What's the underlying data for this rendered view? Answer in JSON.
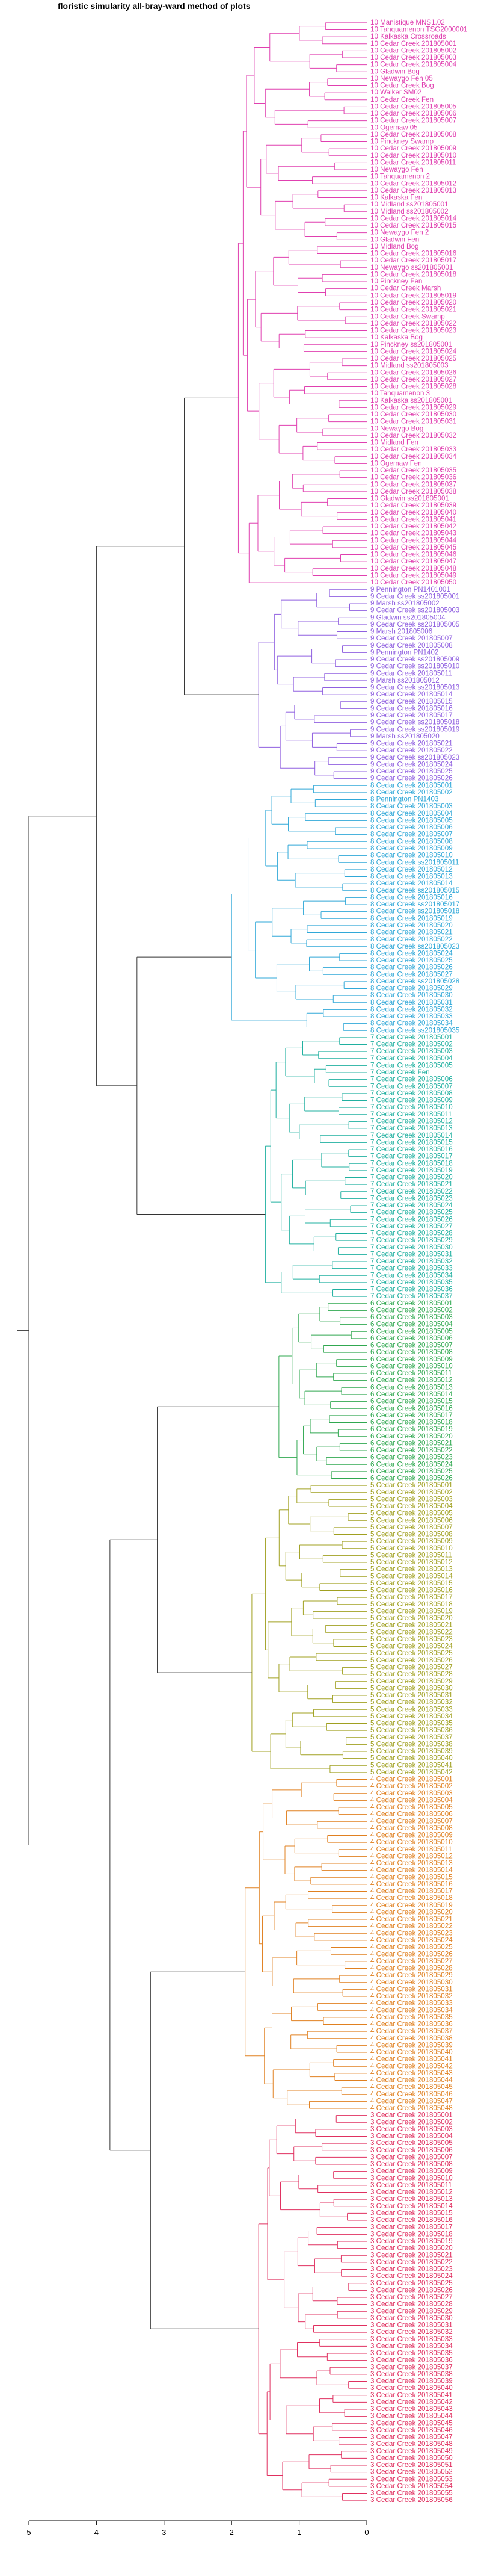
{
  "title": "floristic simularity all-bray-ward  method of plots",
  "axis": {
    "ticks": [
      5,
      4,
      3,
      2,
      1,
      0
    ],
    "range": [
      5,
      0
    ]
  },
  "clusters": [
    {
      "name": "cluster-1",
      "color": "#e040b0",
      "labels": [
        "10 Manistique MNS1.02",
        "10 Tahquamenon TSG2000001",
        "10 Kalkaska Crossroads",
        "10 Cedar Creek 201805001",
        "10 Cedar Creek 201805002",
        "10 Cedar Creek 201805003",
        "10 Cedar Creek 201805004",
        "10 Gladwin Bog",
        "10 Newaygo Fen 05",
        "10 Cedar Creek Bog",
        "10 Walker SM02",
        "10 Cedar Creek Fen",
        "10 Cedar Creek 201805005",
        "10 Cedar Creek 201805006",
        "10 Cedar Creek 201805007",
        "10 Ogemaw 05",
        "10 Cedar Creek 201805008",
        "10 Pinckney Swamp",
        "10 Cedar Creek 201805009",
        "10 Cedar Creek 201805010",
        "10 Cedar Creek 201805011",
        "10 Newaygo Fen",
        "10 Tahquamenon 2",
        "10 Cedar Creek 201805012",
        "10 Cedar Creek 201805013",
        "10 Kalkaska Fen",
        "10 Midland ss201805001",
        "10 Midland ss201805002",
        "10 Cedar Creek 201805014",
        "10 Cedar Creek 201805015",
        "10 Newaygo Fen 2",
        "10 Gladwin Fen",
        "10 Midland Bog",
        "10 Cedar Creek 201805016",
        "10 Cedar Creek 201805017",
        "10 Newaygo ss201805001",
        "10 Cedar Creek 201805018",
        "10 Pinckney Fen",
        "10 Cedar Creek Marsh",
        "10 Cedar Creek 201805019",
        "10 Cedar Creek 201805020",
        "10 Cedar Creek 201805021",
        "10 Cedar Creek Swamp",
        "10 Cedar Creek 201805022",
        "10 Cedar Creek 201805023",
        "10 Kalkaska Bog",
        "10 Pinckney ss201805001",
        "10 Cedar Creek 201805024",
        "10 Cedar Creek 201805025",
        "10 Midland ss201805003",
        "10 Cedar Creek 201805026",
        "10 Cedar Creek 201805027",
        "10 Cedar Creek 201805028",
        "10 Tahquamenon 3",
        "10 Kalkaska ss201805001",
        "10 Cedar Creek 201805029",
        "10 Cedar Creek 201805030",
        "10 Cedar Creek 201805031",
        "10 Newaygo Bog",
        "10 Cedar Creek 201805032",
        "10 Midland Fen",
        "10 Cedar Creek 201805033",
        "10 Cedar Creek 201805034",
        "10 Ogemaw Fen",
        "10 Cedar Creek 201805035",
        "10 Cedar Creek 201805036",
        "10 Cedar Creek 201805037",
        "10 Cedar Creek 201805038",
        "10 Gladwin ss201805001",
        "10 Cedar Creek 201805039",
        "10 Cedar Creek 201805040",
        "10 Cedar Creek 201805041",
        "10 Cedar Creek 201805042",
        "10 Cedar Creek 201805043",
        "10 Cedar Creek 201805044",
        "10 Cedar Creek 201805045",
        "10 Cedar Creek 201805046",
        "10 Cedar Creek 201805047",
        "10 Cedar Creek 201805048",
        "10 Cedar Creek 201805049",
        "10 Cedar Creek 201805050"
      ]
    },
    {
      "name": "cluster-2",
      "color": "#9060e0",
      "labels": [
        "9 Pennington PN1401001",
        "9 Cedar Creek ss201805001",
        "9 Marsh ss201805002",
        "9 Cedar Creek ss201805003",
        "9 Gladwin ss201805004",
        "9 Cedar Creek ss201805005",
        "9 Marsh 201805006",
        "9 Cedar Creek 201805007",
        "9 Cedar Creek 201805008",
        "9 Pennington PN1402",
        "9 Cedar Creek ss201805009",
        "9 Cedar Creek ss201805010",
        "9 Cedar Creek 201805011",
        "9 Marsh ss201805012",
        "9 Cedar Creek ss201805013",
        "9 Cedar Creek 201805014",
        "9 Cedar Creek 201805015",
        "9 Cedar Creek 201805016",
        "9 Cedar Creek 201805017",
        "9 Cedar Creek ss201805018",
        "9 Cedar Creek ss201805019",
        "9 Marsh ss201805020",
        "9 Cedar Creek 201805021",
        "9 Cedar Creek 201805022",
        "9 Cedar Creek ss201805023",
        "9 Cedar Creek 201805024",
        "9 Cedar Creek 201805025",
        "9 Cedar Creek 201805026"
      ]
    },
    {
      "name": "cluster-3",
      "color": "#30a8d8",
      "labels": [
        "8 Cedar Creek 201805001",
        "8 Cedar Creek 201805002",
        "8 Pennington PN1403",
        "8 Cedar Creek 201805003",
        "8 Cedar Creek 201805004",
        "8 Cedar Creek 201805005",
        "8 Cedar Creek 201805006",
        "8 Cedar Creek 201805007",
        "8 Cedar Creek 201805008",
        "8 Cedar Creek 201805009",
        "8 Cedar Creek 201805010",
        "8 Cedar Creek ss201805011",
        "8 Cedar Creek 201805012",
        "8 Cedar Creek 201805013",
        "8 Cedar Creek 201805014",
        "8 Cedar Creek ss201805015",
        "8 Cedar Creek 201805016",
        "8 Cedar Creek ss201805017",
        "8 Cedar Creek ss201805018",
        "8 Cedar Creek 201805019",
        "8 Cedar Creek 201805020",
        "8 Cedar Creek 201805021",
        "8 Cedar Creek 201805022",
        "8 Cedar Creek ss201805023",
        "8 Cedar Creek 201805024",
        "8 Cedar Creek 201805025",
        "8 Cedar Creek 201805026",
        "8 Cedar Creek 201805027",
        "8 Cedar Creek ss201805028",
        "8 Cedar Creek 201805029",
        "8 Cedar Creek 201805030",
        "8 Cedar Creek 201805031",
        "8 Cedar Creek 201805032",
        "8 Cedar Creek 201805033",
        "8 Cedar Creek 201805034",
        "8 Cedar Creek ss201805035"
      ]
    },
    {
      "name": "cluster-4",
      "color": "#20b0a0",
      "labels": [
        "7 Cedar Creek 201805001",
        "7 Cedar Creek 201805002",
        "7 Cedar Creek 201805003",
        "7 Cedar Creek 201805004",
        "7 Cedar Creek 201805005",
        "7 Cedar Creek Fen",
        "7 Cedar Creek 201805006",
        "7 Cedar Creek 201805007",
        "7 Cedar Creek 201805008",
        "7 Cedar Creek 201805009",
        "7 Cedar Creek 201805010",
        "7 Cedar Creek 201805011",
        "7 Cedar Creek 201805012",
        "7 Cedar Creek 201805013",
        "7 Cedar Creek 201805014",
        "7 Cedar Creek 201805015",
        "7 Cedar Creek 201805016",
        "7 Cedar Creek 201805017",
        "7 Cedar Creek 201805018",
        "7 Cedar Creek 201805019",
        "7 Cedar Creek 201805020",
        "7 Cedar Creek 201805021",
        "7 Cedar Creek 201805022",
        "7 Cedar Creek 201805023",
        "7 Cedar Creek 201805024",
        "7 Cedar Creek 201805025",
        "7 Cedar Creek 201805026",
        "7 Cedar Creek 201805027",
        "7 Cedar Creek 201805028",
        "7 Cedar Creek 201805029",
        "7 Cedar Creek 201805030",
        "7 Cedar Creek 201805031",
        "7 Cedar Creek 201805032",
        "7 Cedar Creek 201805033",
        "7 Cedar Creek 201805034",
        "7 Cedar Creek 201805035",
        "7 Cedar Creek 201805036",
        "7 Cedar Creek 201805037"
      ]
    },
    {
      "name": "cluster-5",
      "color": "#30a850",
      "labels": [
        "6 Cedar Creek 201805001",
        "6 Cedar Creek 201805002",
        "6 Cedar Creek 201805003",
        "6 Cedar Creek 201805004",
        "6 Cedar Creek 201805005",
        "6 Cedar Creek 201805006",
        "6 Cedar Creek 201805007",
        "6 Cedar Creek 201805008",
        "6 Cedar Creek 201805009",
        "6 Cedar Creek 201805010",
        "6 Cedar Creek 201805011",
        "6 Cedar Creek 201805012",
        "6 Cedar Creek 201805013",
        "6 Cedar Creek 201805014",
        "6 Cedar Creek 201805015",
        "6 Cedar Creek 201805016",
        "6 Cedar Creek 201805017",
        "6 Cedar Creek 201805018",
        "6 Cedar Creek 201805019",
        "6 Cedar Creek 201805020",
        "6 Cedar Creek 201805021",
        "6 Cedar Creek 201805022",
        "6 Cedar Creek 201805023",
        "6 Cedar Creek 201805024",
        "6 Cedar Creek 201805025",
        "6 Cedar Creek 201805026"
      ]
    },
    {
      "name": "cluster-6",
      "color": "#a0a020",
      "labels": [
        "5 Cedar Creek 201805001",
        "5 Cedar Creek 201805002",
        "5 Cedar Creek 201805003",
        "5 Cedar Creek 201805004",
        "5 Cedar Creek 201805005",
        "5 Cedar Creek 201805006",
        "5 Cedar Creek 201805007",
        "5 Cedar Creek 201805008",
        "5 Cedar Creek 201805009",
        "5 Cedar Creek 201805010",
        "5 Cedar Creek 201805011",
        "5 Cedar Creek 201805012",
        "5 Cedar Creek 201805013",
        "5 Cedar Creek 201805014",
        "5 Cedar Creek 201805015",
        "5 Cedar Creek 201805016",
        "5 Cedar Creek 201805017",
        "5 Cedar Creek 201805018",
        "5 Cedar Creek 201805019",
        "5 Cedar Creek 201805020",
        "5 Cedar Creek 201805021",
        "5 Cedar Creek 201805022",
        "5 Cedar Creek 201805023",
        "5 Cedar Creek 201805024",
        "5 Cedar Creek 201805025",
        "5 Cedar Creek 201805026",
        "5 Cedar Creek 201805027",
        "5 Cedar Creek 201805028",
        "5 Cedar Creek 201805029",
        "5 Cedar Creek 201805030",
        "5 Cedar Creek 201805031",
        "5 Cedar Creek 201805032",
        "5 Cedar Creek 201805033",
        "5 Cedar Creek 201805034",
        "5 Cedar Creek 201805035",
        "5 Cedar Creek 201805036",
        "5 Cedar Creek 201805037",
        "5 Cedar Creek 201805038",
        "5 Cedar Creek 201805039",
        "5 Cedar Creek 201805040",
        "5 Cedar Creek 201805041",
        "5 Cedar Creek 201805042"
      ]
    },
    {
      "name": "cluster-7",
      "color": "#e08020",
      "labels": [
        "4 Cedar Creek 201805001",
        "4 Cedar Creek 201805002",
        "4 Cedar Creek 201805003",
        "4 Cedar Creek 201805004",
        "4 Cedar Creek 201805005",
        "4 Cedar Creek 201805006",
        "4 Cedar Creek 201805007",
        "4 Cedar Creek 201805008",
        "4 Cedar Creek 201805009",
        "4 Cedar Creek 201805010",
        "4 Cedar Creek 201805011",
        "4 Cedar Creek 201805012",
        "4 Cedar Creek 201805013",
        "4 Cedar Creek 201805014",
        "4 Cedar Creek 201805015",
        "4 Cedar Creek 201805016",
        "4 Cedar Creek 201805017",
        "4 Cedar Creek 201805018",
        "4 Cedar Creek 201805019",
        "4 Cedar Creek 201805020",
        "4 Cedar Creek 201805021",
        "4 Cedar Creek 201805022",
        "4 Cedar Creek 201805023",
        "4 Cedar Creek 201805024",
        "4 Cedar Creek 201805025",
        "4 Cedar Creek 201805026",
        "4 Cedar Creek 201805027",
        "4 Cedar Creek 201805028",
        "4 Cedar Creek 201805029",
        "4 Cedar Creek 201805030",
        "4 Cedar Creek 201805031",
        "4 Cedar Creek 201805032",
        "4 Cedar Creek 201805033",
        "4 Cedar Creek 201805034",
        "4 Cedar Creek 201805035",
        "4 Cedar Creek 201805036",
        "4 Cedar Creek 201805037",
        "4 Cedar Creek 201805038",
        "4 Cedar Creek 201805039",
        "4 Cedar Creek 201805040",
        "4 Cedar Creek 201805041",
        "4 Cedar Creek 201805042",
        "4 Cedar Creek 201805043",
        "4 Cedar Creek 201805044",
        "4 Cedar Creek 201805045",
        "4 Cedar Creek 201805046",
        "4 Cedar Creek 201805047",
        "4 Cedar Creek 201805048"
      ]
    },
    {
      "name": "cluster-8",
      "color": "#e03060",
      "labels": [
        "3 Cedar Creek 201805001",
        "3 Cedar Creek 201805002",
        "3 Cedar Creek 201805003",
        "3 Cedar Creek 201805004",
        "3 Cedar Creek 201805005",
        "3 Cedar Creek 201805006",
        "3 Cedar Creek 201805007",
        "3 Cedar Creek 201805008",
        "3 Cedar Creek 201805009",
        "3 Cedar Creek 201805010",
        "3 Cedar Creek 201805011",
        "3 Cedar Creek 201805012",
        "3 Cedar Creek 201805013",
        "3 Cedar Creek 201805014",
        "3 Cedar Creek 201805015",
        "3 Cedar Creek 201805016",
        "3 Cedar Creek 201805017",
        "3 Cedar Creek 201805018",
        "3 Cedar Creek 201805019",
        "3 Cedar Creek 201805020",
        "3 Cedar Creek 201805021",
        "3 Cedar Creek 201805022",
        "3 Cedar Creek 201805023",
        "3 Cedar Creek 201805024",
        "3 Cedar Creek 201805025",
        "3 Cedar Creek 201805026",
        "3 Cedar Creek 201805027",
        "3 Cedar Creek 201805028",
        "3 Cedar Creek 201805029",
        "3 Cedar Creek 201805030",
        "3 Cedar Creek 201805031",
        "3 Cedar Creek 201805032",
        "3 Cedar Creek 201805033",
        "3 Cedar Creek 201805034",
        "3 Cedar Creek 201805035",
        "3 Cedar Creek 201805036",
        "3 Cedar Creek 201805037",
        "3 Cedar Creek 201805038",
        "3 Cedar Creek 201805039",
        "3 Cedar Creek 201805040",
        "3 Cedar Creek 201805041",
        "3 Cedar Creek 201805042",
        "3 Cedar Creek 201805043",
        "3 Cedar Creek 201805044",
        "3 Cedar Creek 201805045",
        "3 Cedar Creek 201805046",
        "3 Cedar Creek 201805047",
        "3 Cedar Creek 201805048",
        "3 Cedar Creek 201805049",
        "3 Cedar Creek 201805050",
        "3 Cedar Creek 201805051",
        "3 Cedar Creek 201805052",
        "3 Cedar Creek 201805053",
        "3 Cedar Creek 201805054",
        "3 Cedar Creek 201805055",
        "3 Cedar Creek 201805056"
      ]
    }
  ],
  "topology": {
    "cluster_heights": [
      1.9,
      1.6,
      2.0,
      1.5,
      1.3,
      1.7,
      1.8,
      1.6
    ],
    "merges": [
      {
        "a": 0,
        "b": 1,
        "height": 2.7
      },
      {
        "a": 2,
        "b": 3,
        "height": 3.4
      },
      {
        "a": "m0",
        "b": "m1",
        "height": 4.0
      },
      {
        "a": 4,
        "b": 5,
        "height": 3.1
      },
      {
        "a": 6,
        "b": 7,
        "height": 3.2
      },
      {
        "a": "m3",
        "b": "m4",
        "height": 3.8
      },
      {
        "a": "m2",
        "b": "m5",
        "height": 5.0
      }
    ],
    "root_color": "#333333"
  }
}
